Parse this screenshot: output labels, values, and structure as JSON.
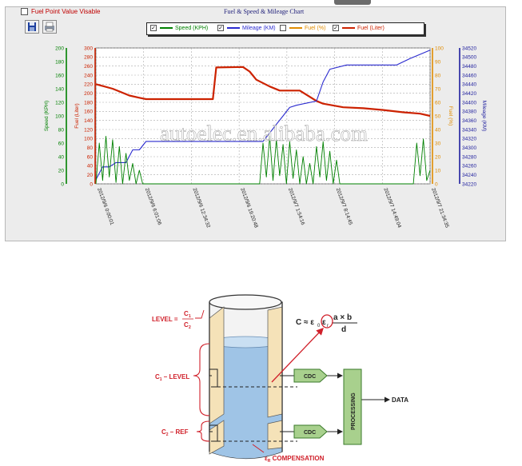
{
  "window": {
    "fuel_point_label": "Fuel Point Value Visable",
    "chart_title": "Fuel & Speed & Mileage Chart",
    "toolbar": {
      "save": "save-icon",
      "print": "print-icon"
    }
  },
  "legend": [
    {
      "label": "Speed (KPH)",
      "color": "#008000",
      "checked": true
    },
    {
      "label": "Mileage (KM)",
      "color": "#2a2acf",
      "checked": true
    },
    {
      "label": "Fuel (%)",
      "color": "#e08c00",
      "checked": false
    },
    {
      "label": "Fuel (Liter)",
      "color": "#cc2200",
      "checked": true
    }
  ],
  "watermark": "autoelec.en.alibaba.com",
  "chart_data": {
    "type": "line",
    "x_ticks": [
      "2012/9/6 0:00:01",
      "2012/9/6 6:01:06",
      "2012/9/6 12:34:32",
      "2012/9/6 19:20:48",
      "2012/9/7 1:54:16",
      "2012/9/7 8:14:45",
      "2012/9/7 14:49:04",
      "2012/9/7 21:34:35"
    ],
    "axes": {
      "speed": {
        "label": "Speed (KPH)",
        "ticks": [
          "200",
          "180",
          "160",
          "140",
          "120",
          "100",
          "80",
          "60",
          "40",
          "20",
          "0"
        ],
        "range": [
          0,
          200
        ]
      },
      "fuel_liter": {
        "label": "Fuel (Liter)",
        "ticks": [
          "300",
          "280",
          "260",
          "240",
          "220",
          "200",
          "180",
          "160",
          "140",
          "120",
          "100",
          "80",
          "60",
          "40",
          "20",
          "0"
        ],
        "range": [
          0,
          300
        ]
      },
      "fuel_pct": {
        "label": "Fuel (%)",
        "ticks": [
          "100",
          "90",
          "80",
          "70",
          "60",
          "50",
          "40",
          "30",
          "20",
          "10",
          "0"
        ],
        "range": [
          0,
          100
        ]
      },
      "mileage": {
        "label": "Mileage (KM)",
        "ticks": [
          "34520",
          "34500",
          "34480",
          "34460",
          "34440",
          "34420",
          "34400",
          "34380",
          "34360",
          "34340",
          "34320",
          "34300",
          "34280",
          "34260",
          "34240",
          "34220"
        ],
        "range": [
          34210,
          34530
        ]
      }
    },
    "series": [
      {
        "name": "Fuel (Liter)",
        "color": "#cc2200",
        "x": [
          0.0,
          0.02,
          0.05,
          0.07,
          0.1,
          0.13,
          0.15,
          0.25,
          0.35,
          0.36,
          0.44,
          0.46,
          0.48,
          0.52,
          0.55,
          0.58,
          0.61,
          0.66,
          0.68,
          0.74,
          0.8,
          0.86,
          0.92,
          0.97,
          1.0
        ],
        "y": [
          220,
          216,
          210,
          204,
          195,
          190,
          187,
          187,
          187,
          257,
          258,
          248,
          230,
          215,
          206,
          206,
          206,
          183,
          177,
          169,
          167,
          163,
          158,
          155,
          150
        ]
      },
      {
        "name": "Mileage (KM)",
        "color": "#2a2acf",
        "x": [
          0.0,
          0.02,
          0.04,
          0.06,
          0.09,
          0.11,
          0.13,
          0.15,
          0.18,
          0.22,
          0.5,
          0.52,
          0.54,
          0.56,
          0.58,
          0.6,
          0.63,
          0.66,
          0.68,
          0.7,
          0.75,
          0.9,
          0.94,
          0.97,
          1.0
        ],
        "y": [
          34220,
          34250,
          34250,
          34260,
          34260,
          34290,
          34290,
          34310,
          34310,
          34310,
          34310,
          34330,
          34350,
          34370,
          34390,
          34395,
          34400,
          34405,
          34450,
          34480,
          34490,
          34490,
          34505,
          34515,
          34525
        ]
      },
      {
        "name": "Speed (KPH)",
        "color": "#008000",
        "x": [
          0.0,
          0.01,
          0.02,
          0.03,
          0.04,
          0.05,
          0.06,
          0.07,
          0.08,
          0.09,
          0.1,
          0.11,
          0.12,
          0.13,
          0.14,
          0.49,
          0.5,
          0.51,
          0.52,
          0.53,
          0.54,
          0.55,
          0.56,
          0.57,
          0.58,
          0.59,
          0.6,
          0.61,
          0.62,
          0.63,
          0.64,
          0.65,
          0.66,
          0.67,
          0.68,
          0.69,
          0.7,
          0.71,
          0.72,
          0.73,
          0.74,
          0.95,
          0.96,
          0.97,
          0.98,
          0.99,
          1.0
        ],
        "y": [
          0,
          60,
          5,
          70,
          10,
          65,
          2,
          55,
          0,
          45,
          5,
          30,
          0,
          20,
          0,
          0,
          60,
          10,
          70,
          5,
          65,
          12,
          58,
          0,
          62,
          8,
          50,
          0,
          40,
          0,
          30,
          0,
          55,
          10,
          62,
          5,
          48,
          0,
          35,
          0,
          0,
          0,
          60,
          12,
          66,
          5,
          20
        ]
      }
    ]
  },
  "diagram": {
    "level_formula": {
      "lhs": "LEVEL =",
      "num": "C",
      "num_sub": "1",
      "den": "C",
      "den_sub": "2"
    },
    "capacitance_formula": {
      "lhs": "C ≈ ε",
      "sub0": "0",
      "eps": "ε",
      "subr": "r",
      "num": "a × b",
      "den": "d"
    },
    "labels": {
      "c1_level": "C",
      "c1_level_sub": "1",
      "c1_level_suffix": " – LEVEL",
      "c2_ref": "C",
      "c2_ref_sub": "2",
      "c2_ref_suffix": " – REF",
      "cdc_top": "CDC",
      "cdc_bottom": "CDC",
      "processing": "PROCESSING",
      "data": "DATA",
      "compensation": "ε",
      "compensation_sub": "R",
      "compensation_suffix": " COMPENSATION"
    },
    "colors": {
      "accent": "#d0202a",
      "box": "#a8d08d",
      "box_border": "#3a7a2a",
      "liquid": "#9fc4e6",
      "electrode": "#f5e2b8"
    }
  }
}
